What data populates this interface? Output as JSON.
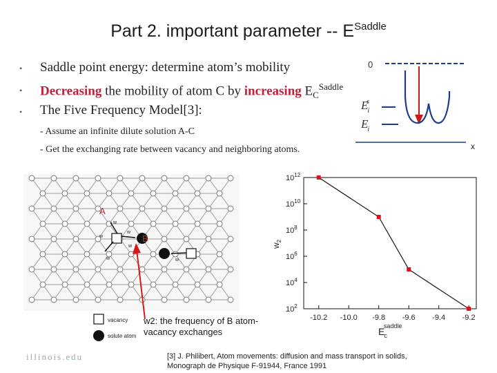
{
  "slide": {
    "title": "Part 2. important parameter -- E",
    "title_sup": "Saddle",
    "bullets": [
      {
        "marker": "•",
        "text": "Saddle point energy: determine atom’s mobility"
      },
      {
        "marker": "•",
        "red1": "Decreasing",
        "text1": " the mobility of atom C by ",
        "red2": "increasing",
        "text2": " E",
        "sub": "C",
        "sup": "Saddle"
      },
      {
        "marker": "•",
        "text": "The Five Frequency Model[3]:"
      }
    ],
    "sub_items": [
      "- Assume an infinite dilute solution A-C",
      "- Get the exchanging rate between vacancy and neighboring atoms."
    ],
    "energy_diagram": {
      "zero_label": "0",
      "es_label_main": "E",
      "es_label_sub": "i",
      "es_label_sup": "s",
      "ei_label_main": "E",
      "ei_label_sub": "i",
      "x_label": "x"
    },
    "lattice": {
      "label_a": "A",
      "label_b": "B",
      "legend_vacancy": "vacancy",
      "legend_solute": "solute atom",
      "jump_labels": [
        "w",
        "w",
        "w",
        "w",
        "w",
        "w"
      ]
    },
    "caption_line1": "w2: the frequency of B atom-",
    "caption_line2": "vacancy exchanges",
    "reference_line1": "[3] J. Philibert, Atom movements: diffusion and mass transport in solids,",
    "reference_line2": "Monograph de Physique F-91944, France 1991",
    "logo": "illinois.edu"
  },
  "chart_data": {
    "type": "scatter",
    "x": [
      -10.2,
      -9.8,
      -9.6,
      -9.2
    ],
    "y": [
      1000000000000.0,
      1000000000.0,
      100000.0,
      100.0
    ],
    "xlim": [
      -10.3,
      -9.15
    ],
    "ylim": [
      100,
      1000000000000
    ],
    "y_scale": "log",
    "x_ticks": [
      "-10.2",
      "-10.0",
      "-9.8",
      "-9.6",
      "-9.4",
      "-9.2"
    ],
    "y_tick_exponents": [
      "12",
      "10",
      "8",
      "6",
      "4",
      "2"
    ],
    "y_tick_base": "10",
    "ylabel_main": "w",
    "ylabel_sub": "2",
    "xlabel_main": "E",
    "xlabel_sub": "c",
    "xlabel_sup": "saddle",
    "colors": {
      "marker": "#e0101a",
      "line": "#111111"
    }
  }
}
